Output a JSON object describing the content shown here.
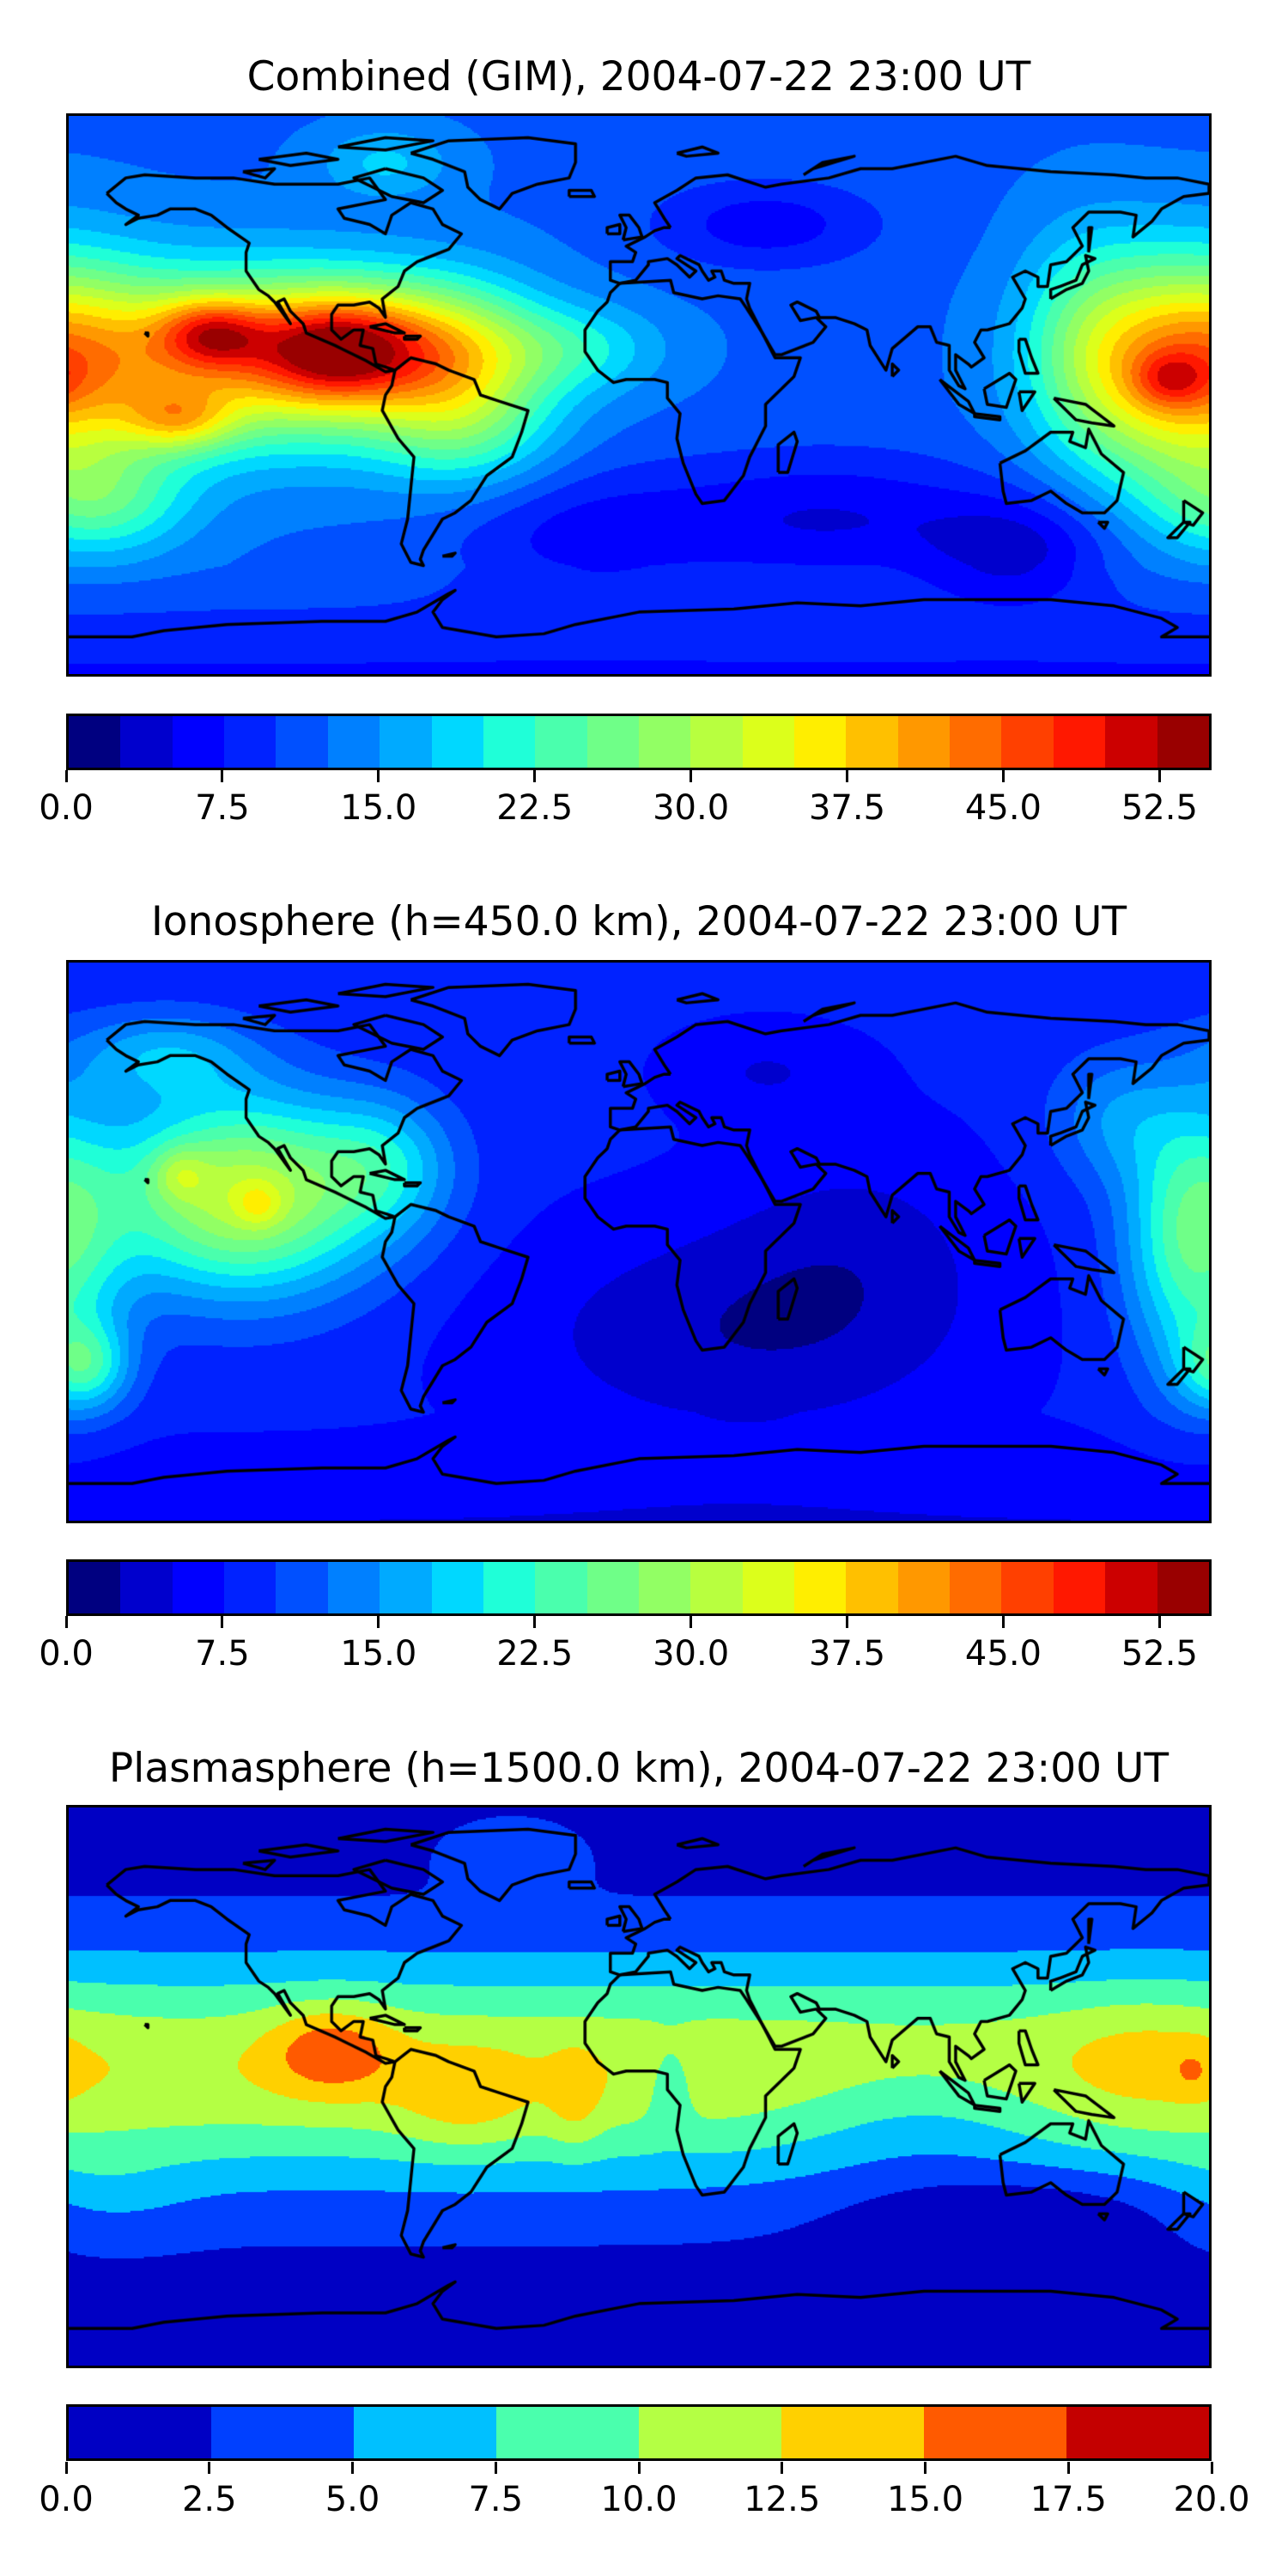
{
  "chart_data": [
    {
      "type": "heatmap",
      "title": "Combined (GIM), 2004-07-22 23:00 UT",
      "projection": "equirectangular",
      "xlim": [
        -180,
        180
      ],
      "ylim": [
        -90,
        90
      ],
      "colorbar": {
        "levels_start": 0.0,
        "levels_step": 2.5,
        "levels_end": 55.0,
        "tick_labels": [
          "0.0",
          "7.5",
          "15.0",
          "22.5",
          "30.0",
          "37.5",
          "45.0",
          "52.5"
        ],
        "tick_values": [
          0,
          7.5,
          15,
          22.5,
          30,
          37.5,
          45,
          52.5
        ],
        "colors": [
          "#000080",
          "#0000cd",
          "#0000ff",
          "#0022ff",
          "#0050ff",
          "#0080ff",
          "#00aaff",
          "#00d8ff",
          "#1fffd8",
          "#4affad",
          "#6fff88",
          "#92ff64",
          "#b8ff3f",
          "#dcff1b",
          "#ffee00",
          "#ffc000",
          "#ff9800",
          "#ff6c00",
          "#ff4000",
          "#ff1800",
          "#cc0000",
          "#990000"
        ]
      },
      "field_model": {
        "base": 12,
        "polar_south_drop": 5,
        "components": [
          {
            "lon": -95,
            "lat": 15,
            "amp": 22,
            "slon": 18,
            "slat": 12
          },
          {
            "lon": -120,
            "lat": 12,
            "amp": 25,
            "slon": 45,
            "slat": 20
          },
          {
            "lon": -135,
            "lat": 20,
            "amp": 16,
            "slon": 12,
            "slat": 8
          },
          {
            "lon": -145,
            "lat": -8,
            "amp": 12,
            "slon": 12,
            "slat": 7
          },
          {
            "lon": -60,
            "lat": 15,
            "amp": 14,
            "slon": 20,
            "slat": 15
          },
          {
            "lon": -55,
            "lat": -10,
            "amp": 10,
            "slon": 20,
            "slat": 15
          },
          {
            "lon": 170,
            "lat": 8,
            "amp": 25,
            "slon": 25,
            "slat": 25
          },
          {
            "lon": 168,
            "lat": 5,
            "amp": 8,
            "slon": 8,
            "slat": 6
          },
          {
            "lon": 140,
            "lat": 20,
            "amp": 6,
            "slon": 15,
            "slat": 25
          },
          {
            "lon": -170,
            "lat": -35,
            "amp": 10,
            "slon": 20,
            "slat": 12
          },
          {
            "lon": -20,
            "lat": 15,
            "amp": 7,
            "slon": 20,
            "slat": 10
          },
          {
            "lon": -80,
            "lat": 75,
            "amp": 6,
            "slon": 15,
            "slat": 8
          },
          {
            "lon": 40,
            "lat": 55,
            "amp": -6,
            "slon": 25,
            "slat": 10
          },
          {
            "lon": 60,
            "lat": -40,
            "amp": -7,
            "slon": 40,
            "slat": 15
          },
          {
            "lon": 120,
            "lat": -50,
            "amp": -7,
            "slon": 20,
            "slat": 12
          },
          {
            "lon": -20,
            "lat": -45,
            "amp": -5,
            "slon": 30,
            "slat": 15
          }
        ]
      }
    },
    {
      "type": "heatmap",
      "title": "Ionosphere  (h=450.0 km), 2004-07-22 23:00 UT",
      "projection": "equirectangular",
      "xlim": [
        -180,
        180
      ],
      "ylim": [
        -90,
        90
      ],
      "colorbar": {
        "levels_start": 0.0,
        "levels_step": 2.5,
        "levels_end": 55.0,
        "tick_labels": [
          "0.0",
          "7.5",
          "15.0",
          "22.5",
          "30.0",
          "37.5",
          "45.0",
          "52.5"
        ],
        "tick_values": [
          0,
          7.5,
          15,
          22.5,
          30,
          37.5,
          45,
          52.5
        ],
        "colors": [
          "#000080",
          "#0000cd",
          "#0000ff",
          "#0022ff",
          "#0050ff",
          "#0080ff",
          "#00aaff",
          "#00d8ff",
          "#1fffd8",
          "#4affad",
          "#6fff88",
          "#92ff64",
          "#b8ff3f",
          "#dcff1b",
          "#ffee00",
          "#ffc000",
          "#ff9800",
          "#ff6c00",
          "#ff4000",
          "#ff1800",
          "#cc0000",
          "#990000"
        ]
      },
      "field_model": {
        "base": 8,
        "polar_south_drop": 3,
        "components": [
          {
            "lon": -125,
            "lat": 15,
            "amp": 24,
            "slon": 30,
            "slat": 22
          },
          {
            "lon": -145,
            "lat": 22,
            "amp": 6,
            "slon": 6,
            "slat": 6
          },
          {
            "lon": -120,
            "lat": 12,
            "amp": 5,
            "slon": 5,
            "slat": 5
          },
          {
            "lon": -80,
            "lat": 25,
            "amp": 8,
            "slon": 15,
            "slat": 15
          },
          {
            "lon": 175,
            "lat": 0,
            "amp": 16,
            "slon": 15,
            "slat": 30
          },
          {
            "lon": -175,
            "lat": -40,
            "amp": 12,
            "slon": 10,
            "slat": 10
          },
          {
            "lon": -150,
            "lat": 60,
            "amp": 8,
            "slon": 20,
            "slat": 10
          },
          {
            "lon": 150,
            "lat": 40,
            "amp": 6,
            "slon": 15,
            "slat": 15
          },
          {
            "lon": 30,
            "lat": -30,
            "amp": -5,
            "slon": 50,
            "slat": 25
          },
          {
            "lon": 70,
            "lat": 0,
            "amp": -3,
            "slon": 30,
            "slat": 25
          },
          {
            "lon": 40,
            "lat": 55,
            "amp": -3,
            "slon": 20,
            "slat": 10
          }
        ]
      }
    },
    {
      "type": "heatmap",
      "title": "Plasmasphere (h=1500.0 km), 2004-07-22 23:00 UT",
      "projection": "equirectangular",
      "xlim": [
        -180,
        180
      ],
      "ylim": [
        -90,
        90
      ],
      "colorbar": {
        "levels_start": 0.0,
        "levels_step": 2.5,
        "levels_end": 20.0,
        "tick_labels": [
          "0.0",
          "2.5",
          "5.0",
          "7.5",
          "10.0",
          "12.5",
          "15.0",
          "17.5",
          "20.0"
        ],
        "tick_values": [
          0,
          2.5,
          5,
          7.5,
          10,
          12.5,
          15,
          17.5,
          20
        ],
        "colors": [
          "#0000c4",
          "#0040ff",
          "#00c0ff",
          "#4affad",
          "#b4ff44",
          "#ffd000",
          "#ff5a00",
          "#c40000"
        ]
      },
      "field_model": {
        "band_amp": 10.5,
        "band_center_lat": 5,
        "band_width_lat": 26,
        "base": 1.5,
        "components": [
          {
            "lon": -97,
            "lat": 12,
            "amp": 5.5,
            "slon": 14,
            "slat": 10
          },
          {
            "lon": -55,
            "lat": -5,
            "amp": 3,
            "slon": 15,
            "slat": 12
          },
          {
            "lon": -20,
            "lat": -5,
            "amp": 2.5,
            "slon": 6,
            "slat": 12
          },
          {
            "lon": 10,
            "lat": 0,
            "amp": -3,
            "slon": 5,
            "slat": 10
          },
          {
            "lon": 90,
            "lat": -10,
            "amp": -3,
            "slon": 30,
            "slat": 15
          },
          {
            "lon": 160,
            "lat": 10,
            "amp": 2,
            "slon": 20,
            "slat": 15
          },
          {
            "lon": 175,
            "lat": 5,
            "amp": 2,
            "slon": 5,
            "slat": 6
          },
          {
            "lon": 120,
            "lat": -40,
            "amp": -3,
            "slon": 40,
            "slat": 10
          },
          {
            "lon": -40,
            "lat": 75,
            "amp": 3,
            "slon": 15,
            "slat": 8
          },
          {
            "lon": -170,
            "lat": -35,
            "amp": 2,
            "slon": 20,
            "slat": 12
          }
        ]
      }
    }
  ]
}
